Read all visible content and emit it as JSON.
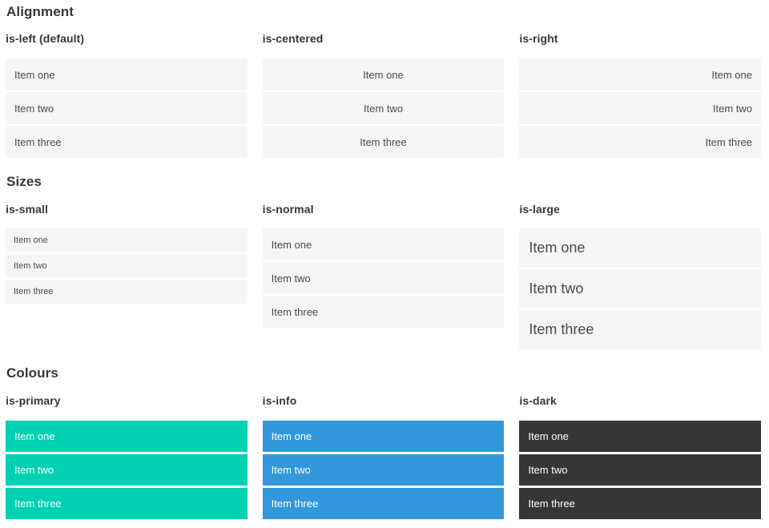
{
  "page": {
    "background": "#ffffff"
  },
  "palette": {
    "item_background": "#f5f5f5",
    "item_text": "#4a4a4a",
    "heading_text": "#363636",
    "primary": "#00d1b2",
    "info": "#3298db",
    "dark": "#363636",
    "on_color_text": "#ffffff"
  },
  "sections": [
    {
      "title": "Alignment",
      "columns": [
        {
          "label": "is-left (default)",
          "items": [
            "Item one",
            "Item two",
            "Item three"
          ]
        },
        {
          "label": "is-centered",
          "items": [
            "Item one",
            "Item two",
            "Item three"
          ]
        },
        {
          "label": "is-right",
          "items": [
            "Item one",
            "Item two",
            "Item three"
          ]
        }
      ]
    },
    {
      "title": "Sizes",
      "columns": [
        {
          "label": "is-small",
          "items": [
            "Item one",
            "Item two",
            "Item three"
          ]
        },
        {
          "label": "is-normal",
          "items": [
            "Item one",
            "Item two",
            "Item three"
          ]
        },
        {
          "label": "is-large",
          "items": [
            "Item one",
            "Item two",
            "Item three"
          ]
        }
      ]
    },
    {
      "title": "Colours",
      "columns": [
        {
          "label": "is-primary",
          "items": [
            "Item one",
            "Item two",
            "Item three"
          ]
        },
        {
          "label": "is-info",
          "items": [
            "Item one",
            "Item two",
            "Item three"
          ]
        },
        {
          "label": "is-dark",
          "items": [
            "Item one",
            "Item two",
            "Item three"
          ]
        }
      ]
    }
  ]
}
